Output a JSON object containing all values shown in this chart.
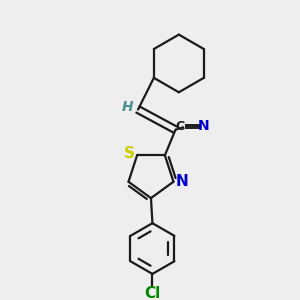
{
  "bg_color": "#eeeeee",
  "bond_color": "#1a1a1a",
  "S_color": "#cccc00",
  "N_color": "#0000cc",
  "Cl_color": "#008800",
  "H_color": "#4a9090",
  "CN_color": "#0000cc",
  "C_color": "#1a1a1a",
  "line_width": 1.6,
  "figsize": [
    3.0,
    3.0
  ],
  "dpi": 100,
  "xlim": [
    0,
    10
  ],
  "ylim": [
    0,
    10
  ]
}
